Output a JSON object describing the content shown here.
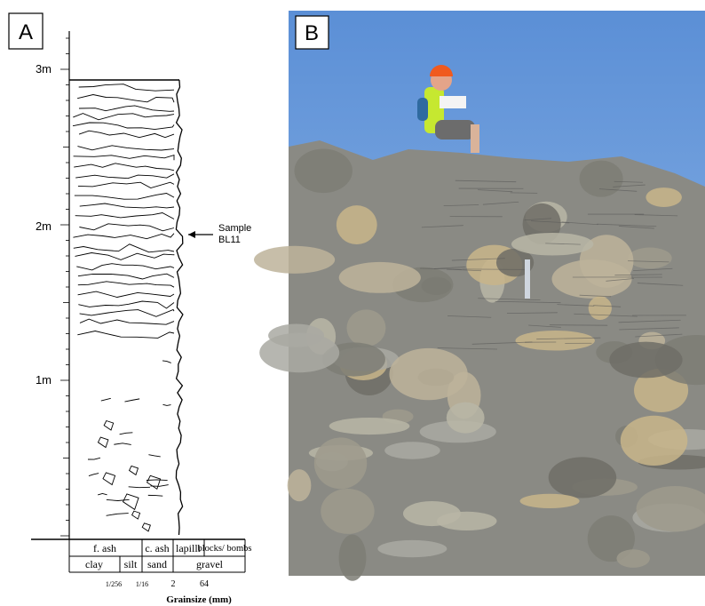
{
  "panel_a": {
    "label": "A",
    "depth_labels": [
      "3m",
      "2m",
      "1m"
    ],
    "annotation": [
      "Sample",
      "BL11"
    ],
    "grainsize_table": {
      "rows": [
        [
          "f. ash",
          "c. ash",
          "lapilli",
          "blocks/ bombs"
        ],
        [
          "clay",
          "silt",
          "sand",
          "gravel"
        ]
      ]
    },
    "grainsize_ticks": [
      "1/256",
      "1/16",
      "2",
      "64"
    ],
    "axis_title": "Grainsize (mm)"
  },
  "panel_b": {
    "label": "B"
  }
}
